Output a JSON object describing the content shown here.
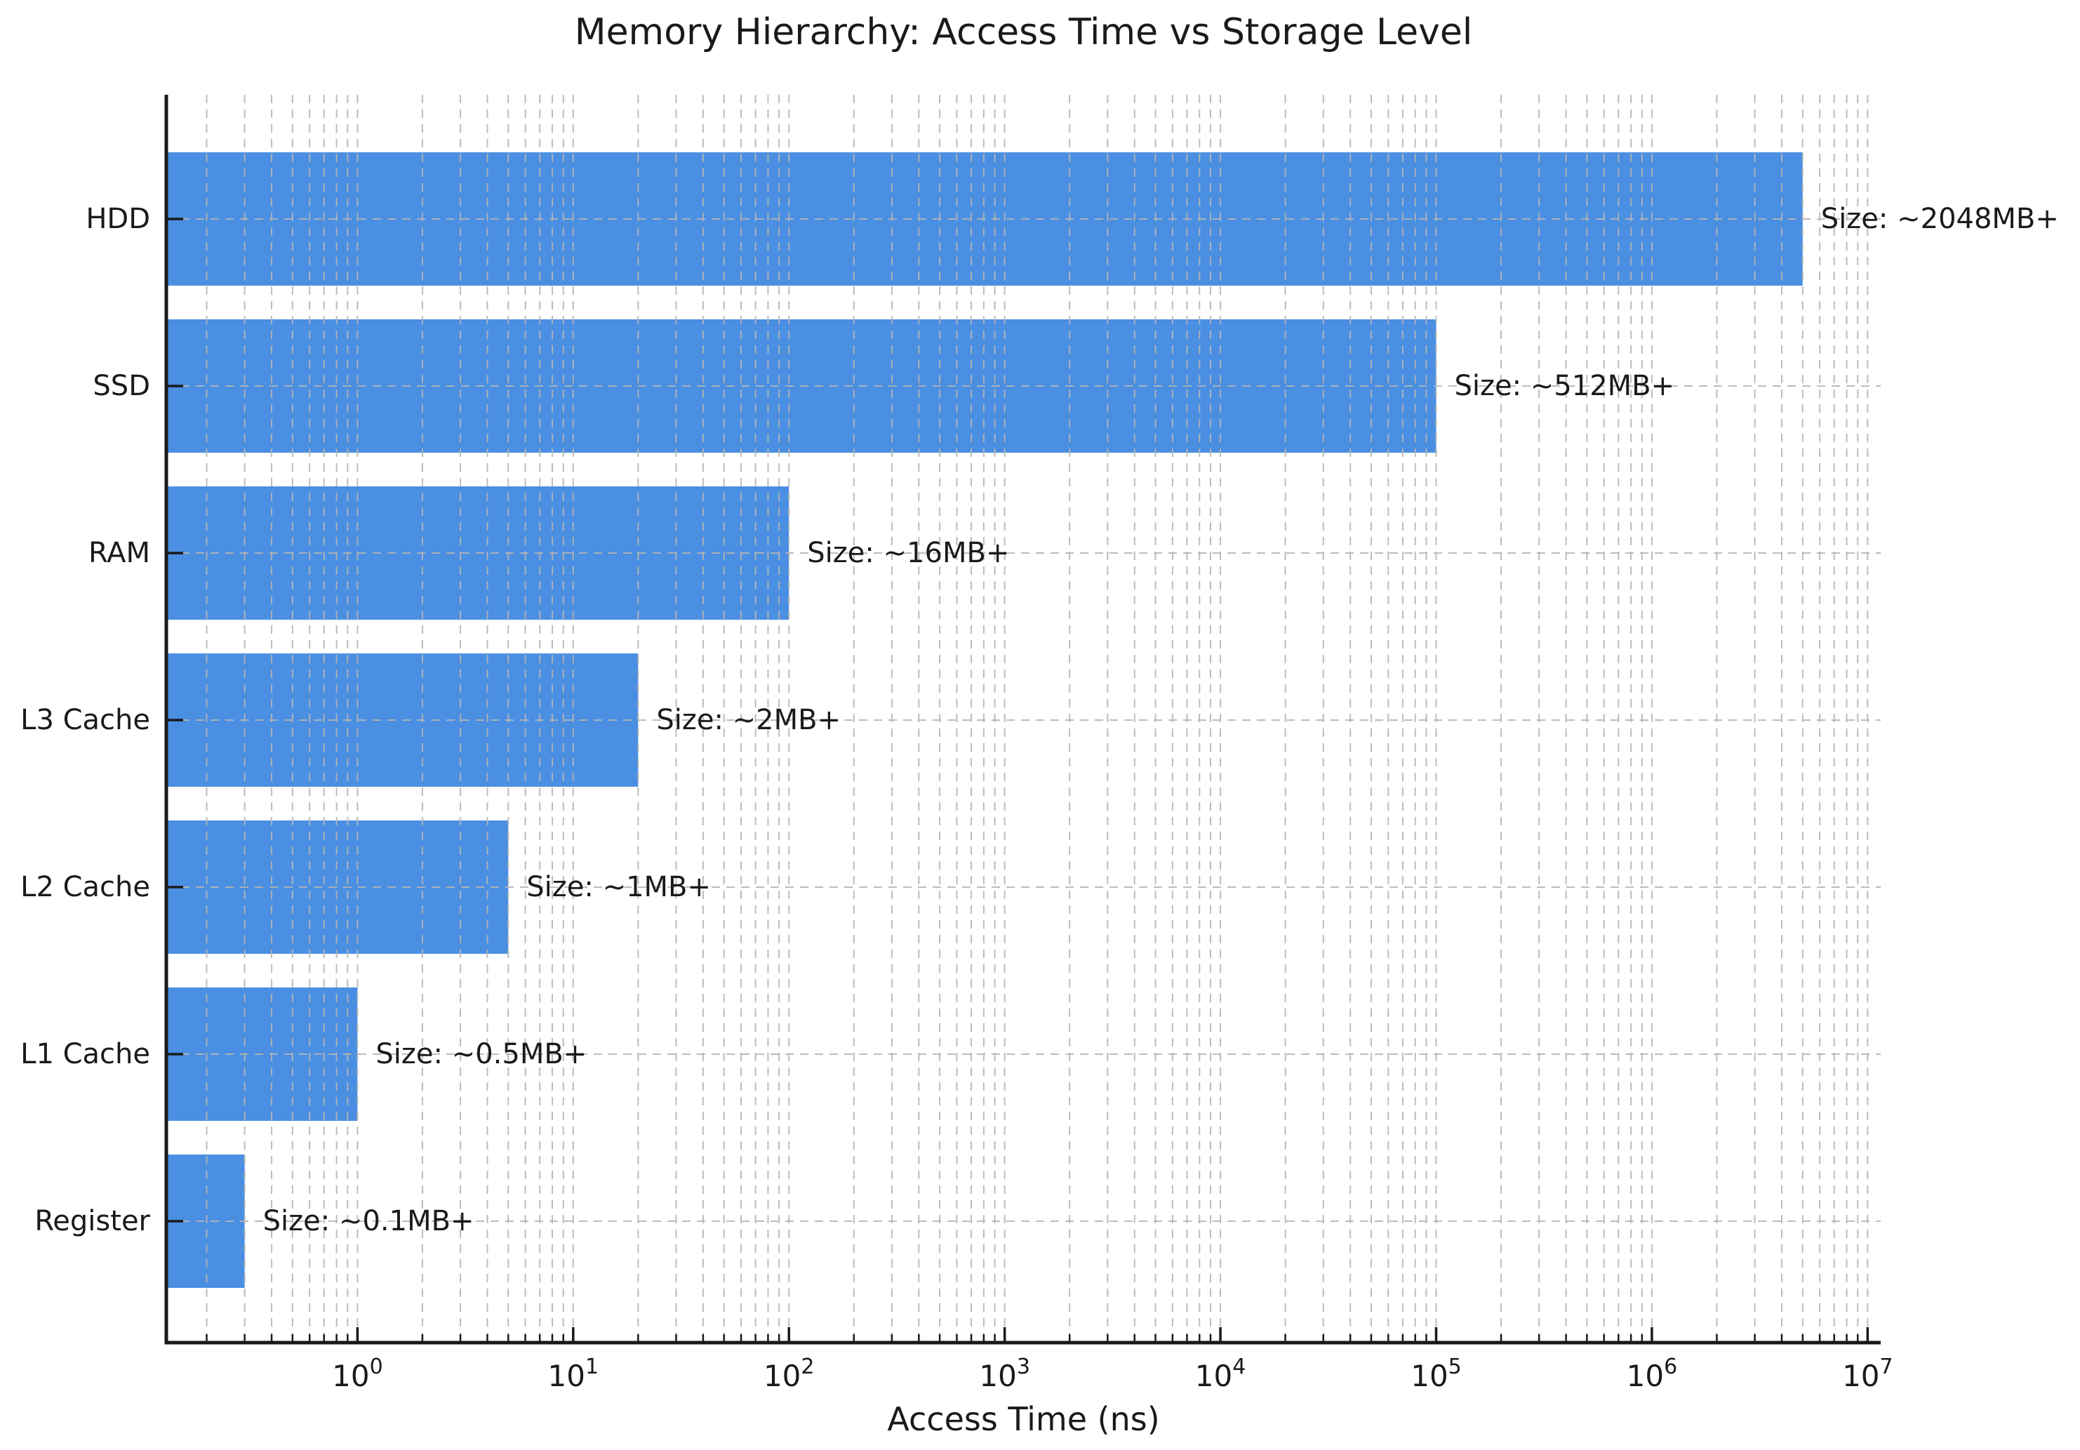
{
  "figure": {
    "kind": "matplotlib-style static chart",
    "background": "#ffffff"
  },
  "chart_data": {
    "type": "bar",
    "orientation": "horizontal",
    "x_scale": "log",
    "title": "Memory Hierarchy: Access Time vs Storage Level",
    "xlabel": "Access Time (ns)",
    "ylabel": "",
    "categories": [
      "HDD",
      "SSD",
      "RAM",
      "L3 Cache",
      "L2 Cache",
      "L1 Cache",
      "Register"
    ],
    "values": [
      5000000,
      100000,
      100,
      20,
      5,
      1,
      0.3
    ],
    "bar_labels": [
      "Size: ~2048MB+",
      "Size: ~512MB+",
      "Size: ~16MB+",
      "Size: ~2MB+",
      "Size: ~1MB+",
      "Size: ~0.5MB+",
      "Size: ~0.1MB+"
    ],
    "xlim": [
      0.13,
      11500000
    ],
    "x_tick_exponents": [
      0,
      1,
      2,
      3,
      4,
      5,
      6,
      7
    ],
    "x_tick_base": "10",
    "grid": true,
    "grid_style": "dashed",
    "legend": false,
    "style": {
      "bar_color": "#4a8fe2",
      "grid_color": "#b5b5b5",
      "axis_color": "#1a1a1a",
      "text_color": "#1a1a1a",
      "background": "#ffffff"
    }
  }
}
